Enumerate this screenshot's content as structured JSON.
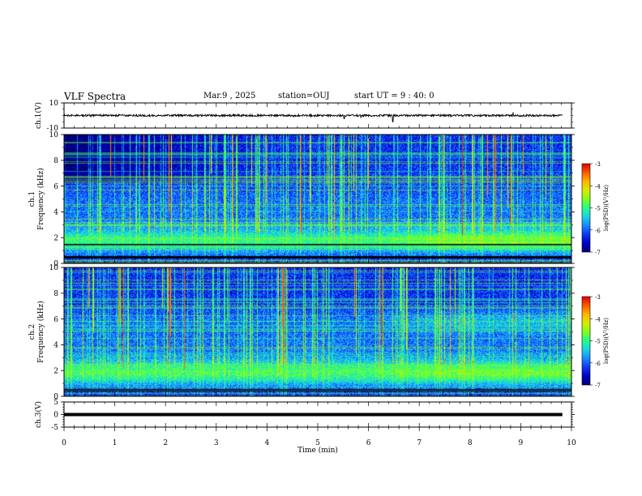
{
  "header": {
    "title": "VLF Spectra",
    "date": "Mar.9 , 2025",
    "station": "station=OUJ",
    "start_ut": "start UT = 9 : 40: 0"
  },
  "colors": {
    "background": "#ffffff",
    "axes": "#000000",
    "colormap": [
      "#000000",
      "#00007a",
      "#0000d8",
      "#1a5cff",
      "#19c8ff",
      "#22ff88",
      "#99ff00",
      "#ffe000",
      "#ff7000",
      "#e00000",
      "#ffffff"
    ]
  },
  "chart_data": [
    {
      "type": "line",
      "id": "ch1_waveform",
      "ylabel": "ch.1(V)",
      "xlim": [
        0,
        10
      ],
      "ylim": [
        -10,
        10
      ],
      "y_ticks": [
        "10",
        "-10"
      ],
      "baseline": 0,
      "grid": false,
      "spikes": [
        {
          "t": 5.52,
          "v": -2.5
        },
        {
          "t": 5.85,
          "v": -2.0
        },
        {
          "t": 6.48,
          "v": -5.0
        },
        {
          "t": 8.85,
          "v": 2.5
        }
      ]
    },
    {
      "type": "heatmap",
      "id": "ch1_spectrogram",
      "ylabel": "ch.1 Frequency (kHz)",
      "xlim": [
        0,
        10
      ],
      "ylim": [
        0,
        10
      ],
      "y_ticks": [
        "0",
        "2",
        "4",
        "6",
        "8",
        "10"
      ],
      "colorbar": {
        "label": "log(PSD)(V²/Hz)",
        "range": [
          -7,
          -3
        ],
        "ticks": [
          "-3",
          "-4",
          "-5",
          "-6",
          "-7"
        ]
      },
      "bands": [
        {
          "f": 1.8,
          "width": 0.9,
          "level": -5.0,
          "level_late": -4.6
        },
        {
          "f": 2.8,
          "width": 0.5,
          "level": -5.6,
          "level_late": -5.4
        }
      ],
      "gaps_khz": [
        0.5,
        1.5
      ],
      "sferic_density": 1.0
    },
    {
      "type": "heatmap",
      "id": "ch2_spectrogram",
      "ylabel": "ch.2 Frequency (kHz)",
      "xlim": [
        0,
        10
      ],
      "ylim": [
        0,
        10
      ],
      "y_ticks": [
        "0",
        "2",
        "4",
        "6",
        "8",
        "10"
      ],
      "colorbar": {
        "label": "log(PSD)(V²/Hz)",
        "range": [
          -7,
          -3
        ],
        "ticks": [
          "-3",
          "-4",
          "-5",
          "-6",
          "-7"
        ]
      },
      "bands": [
        {
          "f": 1.9,
          "width": 1.0,
          "level": -4.9,
          "level_late": -4.7
        },
        {
          "f": 5.8,
          "width": 0.8,
          "level": -5.9,
          "level_late": -5.5
        }
      ],
      "gaps_khz": [
        0.5
      ],
      "sferic_density": 0.9
    },
    {
      "type": "line",
      "id": "ch3_waveform",
      "ylabel": "ch.3(V)",
      "xlabel": "Time (min)",
      "xlim": [
        0,
        10
      ],
      "ylim": [
        -5,
        5
      ],
      "y_ticks": [
        "5",
        "0",
        "-5"
      ],
      "x_ticks": [
        "0",
        "1",
        "2",
        "3",
        "4",
        "5",
        "6",
        "7",
        "8",
        "9",
        "10"
      ],
      "baseline": 0,
      "grid": false
    }
  ]
}
